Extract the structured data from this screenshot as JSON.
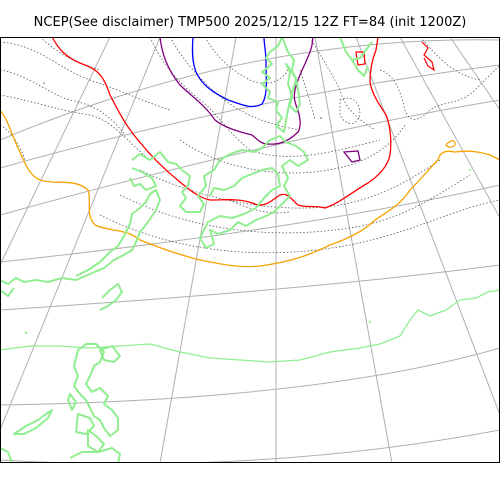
{
  "title": "NCEP(See disclaimer) TMP500 2025/12/15 12Z FT=84 (init 1200Z)",
  "legend": [],
  "colors": {
    "background": "#ffffff",
    "graticule": "#b0b0b0",
    "coastline": "#90ee90",
    "contour_dotted": "#555555",
    "isotherm_orange": "#f5a300",
    "isotherm_red": "#ff0000",
    "isotherm_purple": "#800080",
    "isotherm_blue": "#0000ff"
  }
}
